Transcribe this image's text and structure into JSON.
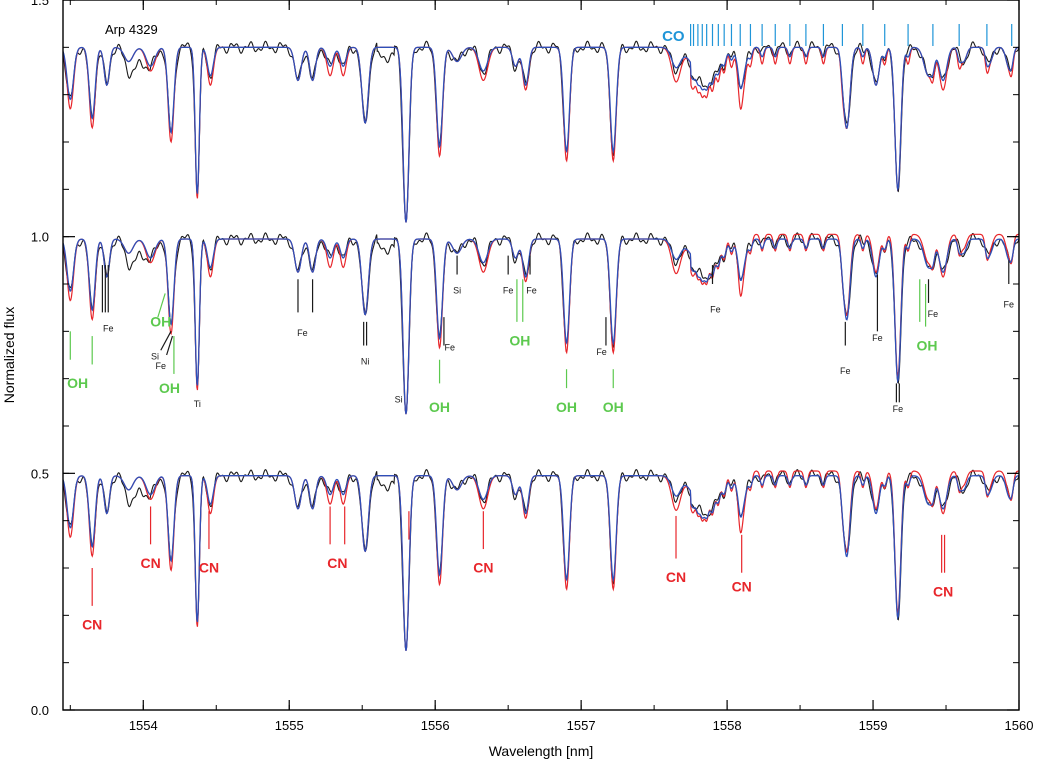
{
  "chart_data": {
    "type": "line",
    "title": "Arp 4329",
    "xlabel": "Wavelength [nm]",
    "ylabel": "Normalized flux",
    "xlim": [
      1553.45,
      1560.0
    ],
    "ylim": [
      0.0,
      1.5
    ],
    "x_ticks": [
      {
        "value": 1554,
        "label": "1554"
      },
      {
        "value": 1555,
        "label": "1555"
      },
      {
        "value": 1556,
        "label": "1556"
      },
      {
        "value": 1557,
        "label": "1557"
      },
      {
        "value": 1558,
        "label": "1558"
      },
      {
        "value": 1559,
        "label": "1559"
      },
      {
        "value": 1560,
        "label": "1560"
      }
    ],
    "y_ticks": [
      {
        "value": 0.0,
        "label": "0.0"
      },
      {
        "value": 0.5,
        "label": "0.5"
      },
      {
        "value": 1.0,
        "label": "1.0"
      },
      {
        "value": 1.5,
        "label": "1.5"
      }
    ],
    "grid": false,
    "legend": "none",
    "colors": {
      "observed": "#1a1a1a",
      "model_red": "#e8262b",
      "model_blue": "#2e4fb8",
      "oh": "#5cc94e",
      "cn": "#e8262b",
      "co": "#1f95d8",
      "ident": "#1a1a1a"
    },
    "panels": [
      {
        "offset": 0.4,
        "highlight": "CO"
      },
      {
        "offset": -0.005,
        "highlight": "OH"
      },
      {
        "offset": -0.505,
        "highlight": "CN"
      }
    ],
    "lines": [
      {
        "x": 1553.5,
        "d": 0.11,
        "w": 0.022,
        "rd": 0.13
      },
      {
        "x": 1553.65,
        "d": 0.15,
        "w": 0.02,
        "rd": 0.17
      },
      {
        "x": 1553.75,
        "d": 0.08,
        "w": 0.018
      },
      {
        "x": 1553.9,
        "d": 0.03,
        "w": 0.03
      },
      {
        "x": 1554.05,
        "d": 0.04,
        "w": 0.03,
        "rd": 0.05
      },
      {
        "x": 1554.19,
        "d": 0.18,
        "w": 0.02,
        "rd": 0.2
      },
      {
        "x": 1554.37,
        "d": 0.31,
        "w": 0.014,
        "rd": 0.32
      },
      {
        "x": 1554.46,
        "d": 0.06,
        "w": 0.02,
        "rd": 0.08
      },
      {
        "x": 1555.06,
        "d": 0.07,
        "w": 0.022
      },
      {
        "x": 1555.16,
        "d": 0.07,
        "w": 0.02
      },
      {
        "x": 1555.28,
        "d": 0.04,
        "w": 0.022,
        "rd": 0.06
      },
      {
        "x": 1555.37,
        "d": 0.04,
        "w": 0.02,
        "rd": 0.06
      },
      {
        "x": 1555.52,
        "d": 0.16,
        "w": 0.022
      },
      {
        "x": 1555.8,
        "d": 0.37,
        "w": 0.02
      },
      {
        "x": 1556.03,
        "d": 0.21,
        "w": 0.02,
        "rd": 0.23
      },
      {
        "x": 1556.15,
        "d": 0.03,
        "w": 0.03
      },
      {
        "x": 1556.33,
        "d": 0.05,
        "w": 0.03,
        "rd": 0.07
      },
      {
        "x": 1556.55,
        "d": 0.04,
        "w": 0.02
      },
      {
        "x": 1556.62,
        "d": 0.08,
        "w": 0.02,
        "rd": 0.09
      },
      {
        "x": 1556.9,
        "d": 0.22,
        "w": 0.02,
        "rd": 0.24
      },
      {
        "x": 1557.22,
        "d": 0.22,
        "w": 0.02,
        "rd": 0.24
      },
      {
        "x": 1557.65,
        "d": 0.04,
        "w": 0.03,
        "rd": 0.07
      },
      {
        "x": 1557.85,
        "d": 0.07,
        "w": 0.08
      },
      {
        "x": 1558.1,
        "d": 0.07,
        "w": 0.025,
        "rd": 0.1
      },
      {
        "x": 1558.82,
        "d": 0.17,
        "w": 0.022
      },
      {
        "x": 1559.02,
        "d": 0.08,
        "w": 0.022
      },
      {
        "x": 1559.17,
        "d": 0.3,
        "w": 0.02
      },
      {
        "x": 1559.38,
        "d": 0.06,
        "w": 0.03
      },
      {
        "x": 1559.48,
        "d": 0.07,
        "w": 0.025,
        "rd": 0.09
      },
      {
        "x": 1559.62,
        "d": 0.03,
        "w": 0.02
      },
      {
        "x": 1559.8,
        "d": 0.03,
        "w": 0.02
      },
      {
        "x": 1559.93,
        "d": 0.04,
        "w": 0.02
      }
    ],
    "co_band": {
      "label": "CO",
      "start": 1557.75,
      "end": 1560.0
    },
    "co_lines": [
      1557.75,
      1557.77,
      1557.8,
      1557.83,
      1557.86,
      1557.9,
      1557.94,
      1557.98,
      1558.03,
      1558.09,
      1558.16,
      1558.24,
      1558.33,
      1558.43,
      1558.54,
      1558.66,
      1558.79,
      1558.93,
      1559.08,
      1559.24,
      1559.41,
      1559.59,
      1559.78,
      1559.95
    ],
    "annotations": {
      "oh": [
        {
          "label": "OH",
          "lines": [
            {
              "x": 1553.5,
              "y1": 0.8,
              "y2": 0.74
            }
          ],
          "tx": 1553.55,
          "ty": 0.68
        },
        {
          "label": "OH",
          "lines": [
            {
              "x": 1553.65,
              "y1": 0.79,
              "y2": 0.73
            },
            {
              "x": 1554.15,
              "y1": 0.88,
              "y2": 0.83,
              "x2": 1554.1
            }
          ],
          "tx": 1554.12,
          "ty": 0.81
        },
        {
          "label": "OH",
          "lines": [
            {
              "x": 1554.21,
              "y1": 0.79,
              "y2": 0.71
            }
          ],
          "tx": 1554.18,
          "ty": 0.67
        },
        {
          "label": "OH",
          "lines": [
            {
              "x": 1556.03,
              "y1": 0.74,
              "y2": 0.69
            }
          ],
          "tx": 1556.03,
          "ty": 0.63
        },
        {
          "label": "OH",
          "lines": [
            {
              "x": 1556.56,
              "y1": 0.91,
              "y2": 0.82
            },
            {
              "x": 1556.6,
              "y1": 0.91,
              "y2": 0.82
            }
          ],
          "tx": 1556.58,
          "ty": 0.77
        },
        {
          "label": "OH",
          "lines": [
            {
              "x": 1556.9,
              "y1": 0.72,
              "y2": 0.68
            }
          ],
          "tx": 1556.9,
          "ty": 0.63
        },
        {
          "label": "OH",
          "lines": [
            {
              "x": 1557.22,
              "y1": 0.72,
              "y2": 0.68
            }
          ],
          "tx": 1557.22,
          "ty": 0.63
        },
        {
          "label": "OH",
          "lines": [
            {
              "x": 1559.32,
              "y1": 0.91,
              "y2": 0.82
            },
            {
              "x": 1559.36,
              "y1": 0.9,
              "y2": 0.81
            }
          ],
          "tx": 1559.37,
          "ty": 0.76
        }
      ],
      "cn": [
        {
          "label": "CN",
          "lines": [
            {
              "x": 1553.65,
              "y1": 0.3,
              "y2": 0.22
            }
          ],
          "tx": 1553.65,
          "ty": 0.17
        },
        {
          "label": "CN",
          "lines": [
            {
              "x": 1554.05,
              "y1": 0.43,
              "y2": 0.35
            }
          ],
          "tx": 1554.05,
          "ty": 0.3
        },
        {
          "label": "CN",
          "lines": [
            {
              "x": 1554.45,
              "y1": 0.42,
              "y2": 0.34
            }
          ],
          "tx": 1554.45,
          "ty": 0.29
        },
        {
          "label": "CN",
          "lines": [
            {
              "x": 1555.28,
              "y1": 0.43,
              "y2": 0.35
            },
            {
              "x": 1555.38,
              "y1": 0.43,
              "y2": 0.35
            }
          ],
          "tx": 1555.33,
          "ty": 0.3
        },
        {
          "label": "CN",
          "lines": [
            {
              "x": 1555.82,
              "y1": 0.42,
              "y2": 0.36
            }
          ]
        },
        {
          "label": "CN",
          "lines": [
            {
              "x": 1556.33,
              "y1": 0.42,
              "y2": 0.34
            }
          ],
          "tx": 1556.33,
          "ty": 0.29
        },
        {
          "label": "CN",
          "lines": [
            {
              "x": 1557.65,
              "y1": 0.41,
              "y2": 0.32
            }
          ],
          "tx": 1557.65,
          "ty": 0.27
        },
        {
          "label": "CN",
          "lines": [
            {
              "x": 1558.1,
              "y1": 0.37,
              "y2": 0.29
            }
          ],
          "tx": 1558.1,
          "ty": 0.25
        },
        {
          "label": "CN",
          "lines": [
            {
              "x": 1559.47,
              "y1": 0.37,
              "y2": 0.29
            },
            {
              "x": 1559.49,
              "y1": 0.37,
              "y2": 0.29
            }
          ],
          "tx": 1559.48,
          "ty": 0.24
        }
      ],
      "ident": [
        {
          "label": "Fe",
          "lines": [
            {
              "x": 1553.72,
              "y1": 0.94,
              "y2": 0.84
            },
            {
              "x": 1553.74,
              "y1": 0.94,
              "y2": 0.84
            },
            {
              "x": 1553.76,
              "y1": 0.94,
              "y2": 0.84
            }
          ],
          "tx": 1553.76,
          "ty": 0.8
        },
        {
          "label": "Si",
          "lines": [
            {
              "x": 1554.19,
              "y1": 0.8,
              "y2": 0.76,
              "x2": 1554.12
            }
          ],
          "tx": 1554.08,
          "ty": 0.74
        },
        {
          "label": "Fe",
          "lines": [
            {
              "x": 1554.2,
              "y1": 0.79,
              "y2": 0.75,
              "x2": 1554.16
            }
          ],
          "tx": 1554.12,
          "ty": 0.72
        },
        {
          "label": "Ti",
          "lines": [],
          "tx": 1554.37,
          "ty": 0.64
        },
        {
          "label": "Fe",
          "lines": [
            {
              "x": 1555.06,
              "y1": 0.91,
              "y2": 0.84
            },
            {
              "x": 1555.16,
              "y1": 0.91,
              "y2": 0.84
            }
          ],
          "tx": 1555.09,
          "ty": 0.79
        },
        {
          "label": "Ni",
          "lines": [
            {
              "x": 1555.51,
              "y1": 0.82,
              "y2": 0.77
            },
            {
              "x": 1555.53,
              "y1": 0.82,
              "y2": 0.77
            }
          ],
          "tx": 1555.52,
          "ty": 0.73
        },
        {
          "label": "Si",
          "lines": [],
          "tx": 1555.75,
          "ty": 0.65
        },
        {
          "label": "Fe",
          "lines": [
            {
              "x": 1556.06,
              "y1": 0.83,
              "y2": 0.77
            }
          ],
          "tx": 1556.1,
          "ty": 0.76
        },
        {
          "label": "Si",
          "lines": [
            {
              "x": 1556.15,
              "y1": 0.96,
              "y2": 0.92
            }
          ],
          "tx": 1556.15,
          "ty": 0.88
        },
        {
          "label": "Fe",
          "lines": [
            {
              "x": 1556.5,
              "y1": 0.96,
              "y2": 0.92
            }
          ],
          "tx": 1556.5,
          "ty": 0.88
        },
        {
          "label": "Fe",
          "lines": [
            {
              "x": 1556.65,
              "y1": 0.96,
              "y2": 0.92
            }
          ],
          "tx": 1556.66,
          "ty": 0.88
        },
        {
          "label": "Fe",
          "lines": [
            {
              "x": 1557.17,
              "y1": 0.83,
              "y2": 0.77
            }
          ],
          "tx": 1557.14,
          "ty": 0.75
        },
        {
          "label": "Fe",
          "lines": [
            {
              "x": 1557.9,
              "y1": 0.94,
              "y2": 0.9
            }
          ],
          "tx": 1557.92,
          "ty": 0.84
        },
        {
          "label": "Fe",
          "lines": [
            {
              "x": 1558.81,
              "y1": 0.82,
              "y2": 0.77
            }
          ],
          "tx": 1558.81,
          "ty": 0.71
        },
        {
          "label": "Fe",
          "lines": [
            {
              "x": 1559.03,
              "y1": 0.92,
              "y2": 0.8
            }
          ],
          "tx": 1559.03,
          "ty": 0.78
        },
        {
          "label": "Fe",
          "lines": [
            {
              "x": 1559.16,
              "y1": 0.69,
              "y2": 0.65
            },
            {
              "x": 1559.18,
              "y1": 0.69,
              "y2": 0.65
            }
          ],
          "tx": 1559.17,
          "ty": 0.63
        },
        {
          "label": "Fe",
          "lines": [
            {
              "x": 1559.38,
              "y1": 0.91,
              "y2": 0.86
            }
          ],
          "tx": 1559.41,
          "ty": 0.83
        },
        {
          "label": "Fe",
          "lines": [
            {
              "x": 1559.93,
              "y1": 0.95,
              "y2": 0.9
            }
          ],
          "tx": 1559.93,
          "ty": 0.85
        }
      ]
    }
  }
}
